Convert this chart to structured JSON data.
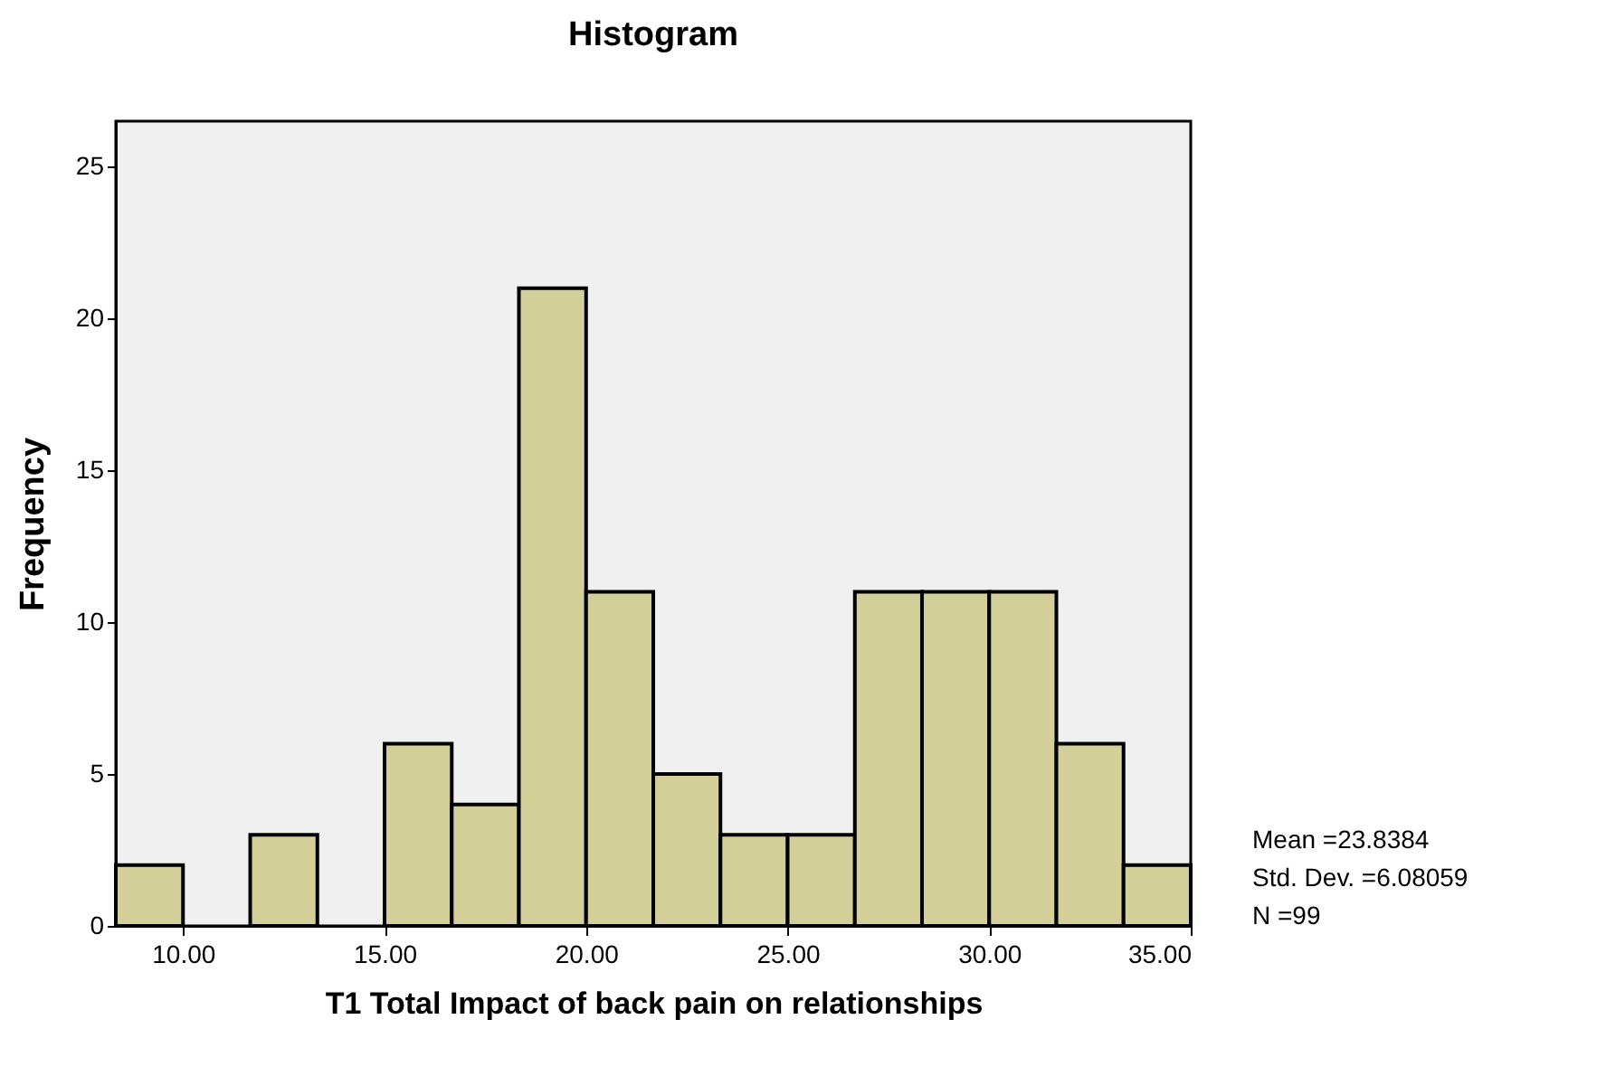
{
  "chart_data": {
    "type": "histogram",
    "title": "Histogram",
    "xlabel": "T1 Total Impact of back pain on relationships",
    "ylabel": "Frequency",
    "bins": [
      8.333,
      10,
      11.667,
      13.333,
      15,
      16.667,
      18.333,
      20,
      21.667,
      23.333,
      25,
      26.667,
      28.333,
      30,
      31.667,
      33.333,
      35
    ],
    "values": [
      2,
      0,
      3,
      0,
      6,
      4,
      21,
      11,
      5,
      3,
      3,
      11,
      11,
      11,
      6,
      2
    ],
    "color": "#d3cf98",
    "xlim": [
      8.333,
      35
    ],
    "xticks": [
      {
        "value": 10,
        "label": "10.00"
      },
      {
        "value": 15,
        "label": "15.00"
      },
      {
        "value": 20,
        "label": "20.00"
      },
      {
        "value": 25,
        "label": "25.00"
      },
      {
        "value": 30,
        "label": "30.00"
      },
      {
        "value": 35,
        "label": "35.00"
      }
    ],
    "ylim": [
      0,
      26.5
    ],
    "yticks": [
      0,
      5,
      10,
      15,
      20,
      25
    ],
    "grid": false,
    "annotations": [
      "Mean =23.8384",
      "Std. Dev. =6.08059",
      "N =99"
    ]
  }
}
